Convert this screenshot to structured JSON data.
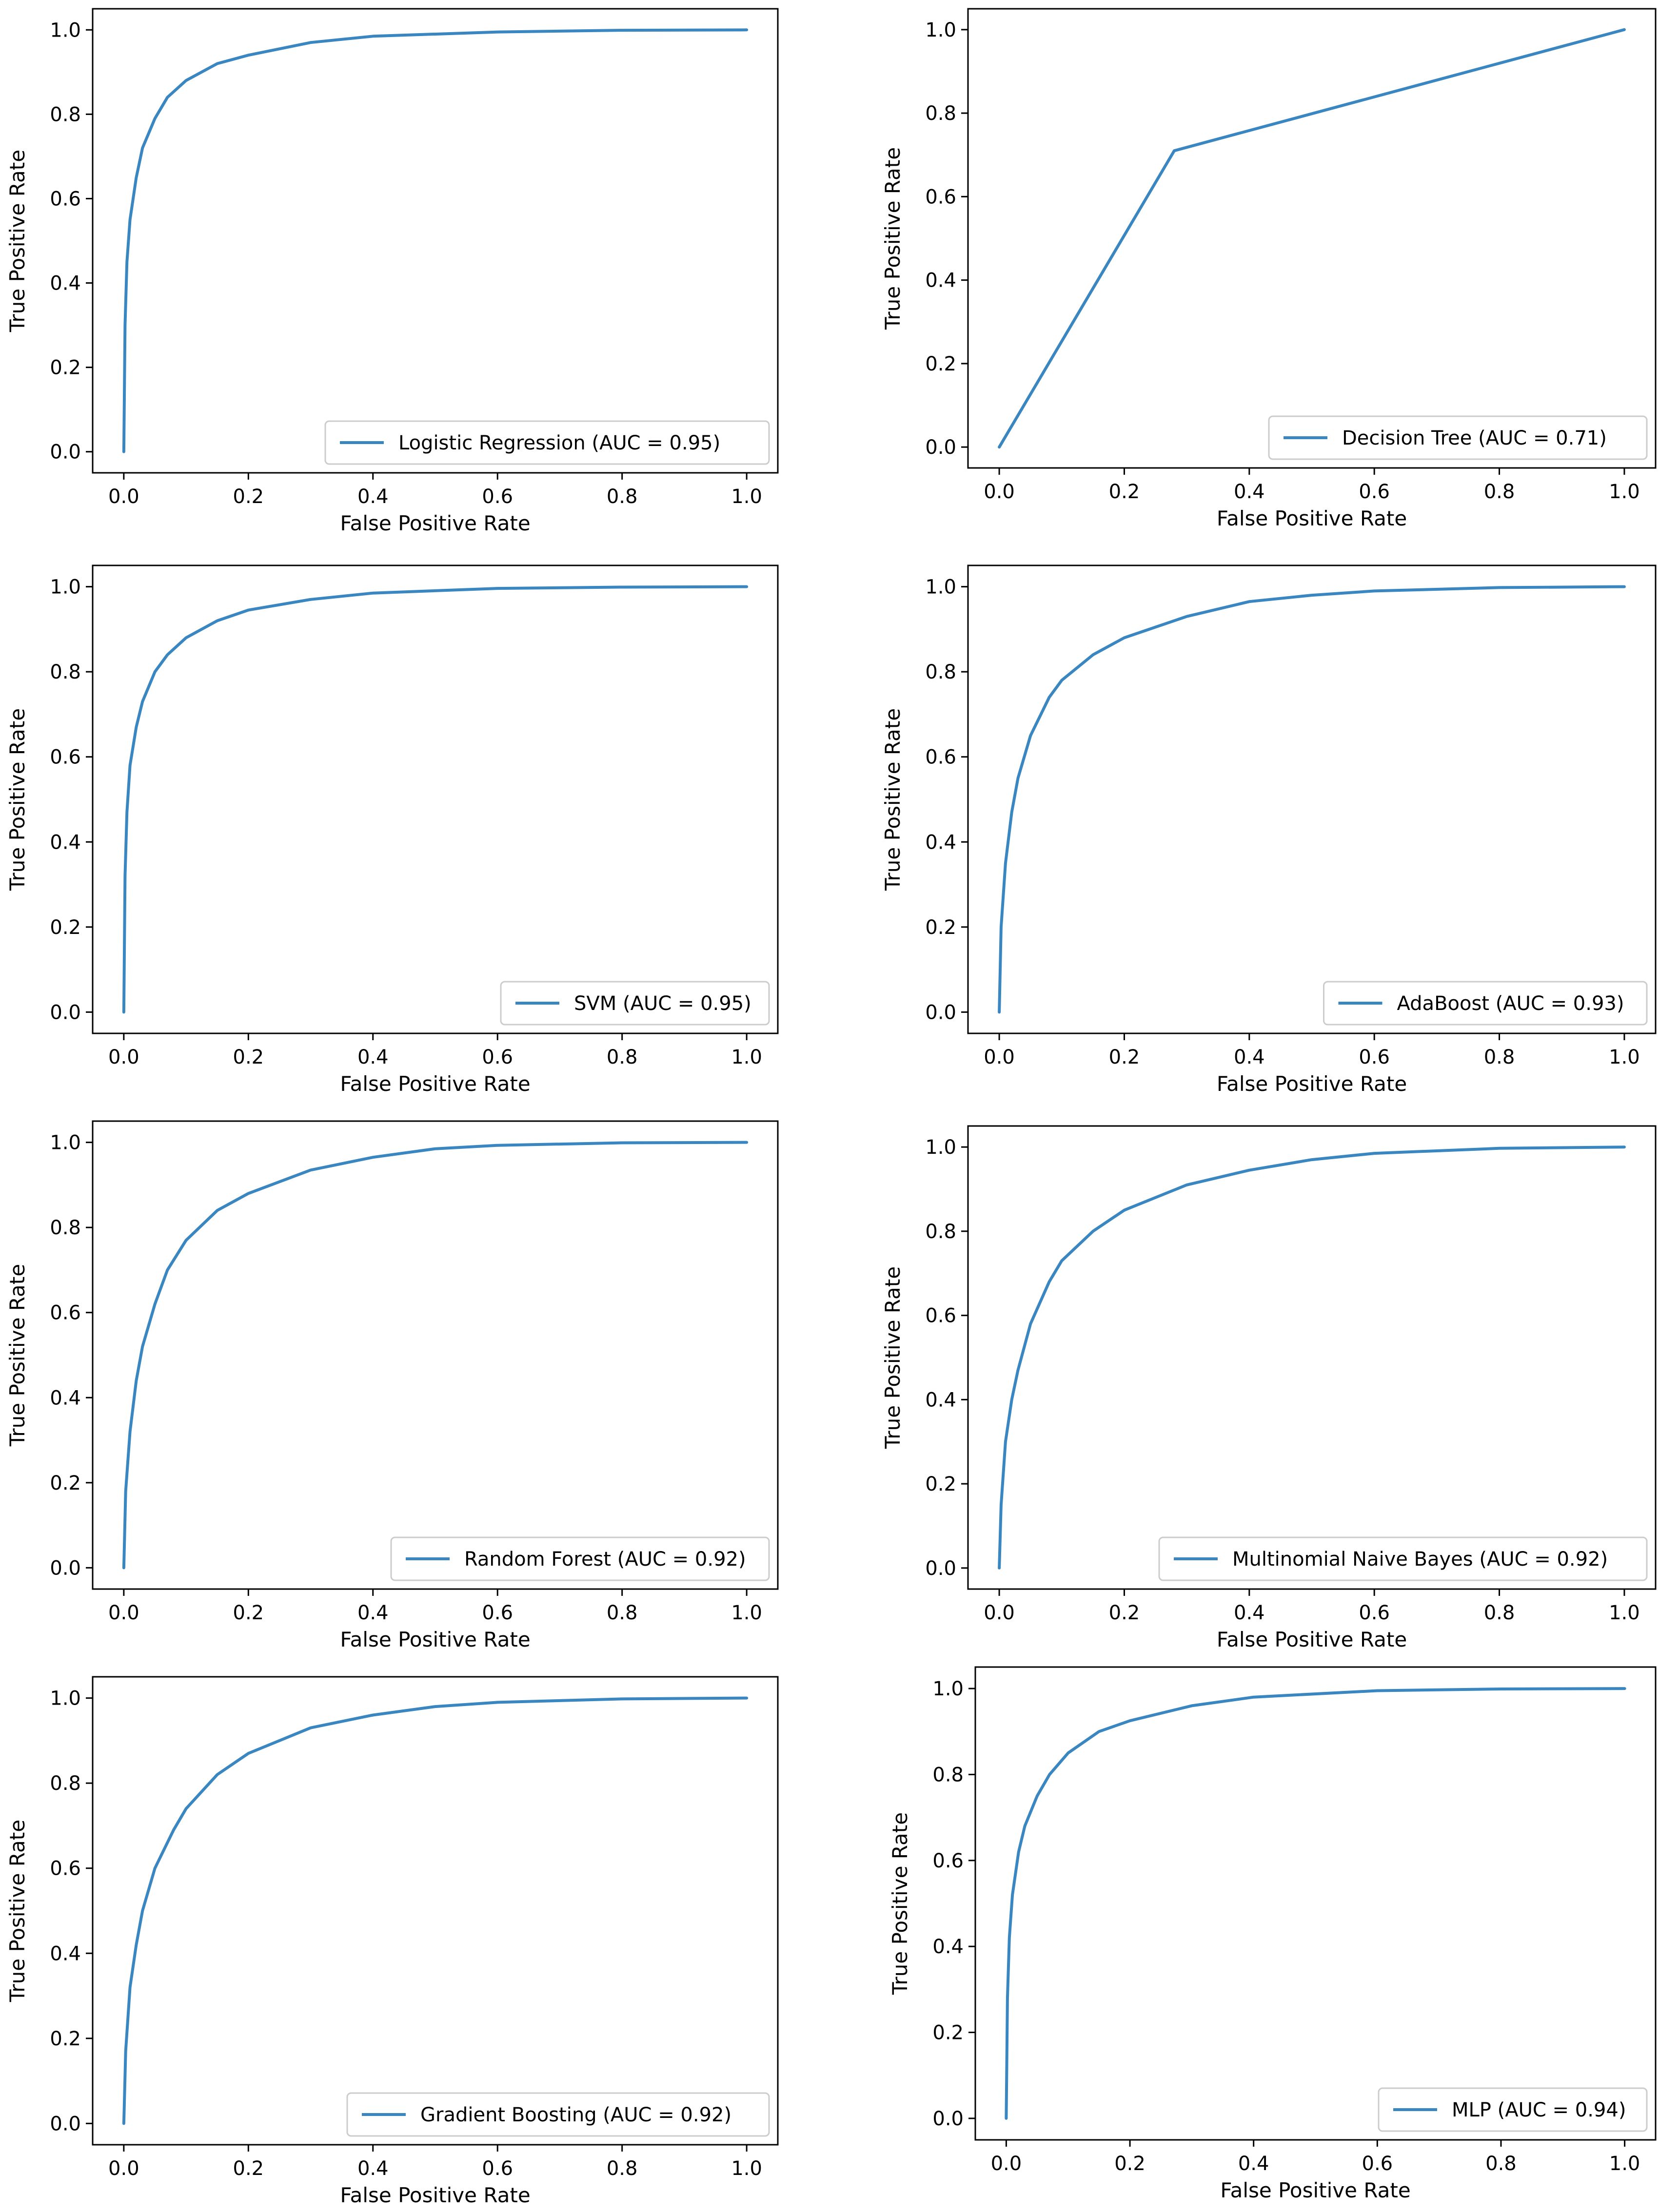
{
  "colors": {
    "line": "#3a86c0",
    "axes": "#000000",
    "legend_border": "#cccccc"
  },
  "chart_data": [
    {
      "type": "line",
      "title": "",
      "legend": "Logistic Regression (AUC = 0.95)",
      "xlabel": "False Positive Rate",
      "ylabel": "True Positive Rate",
      "xlim": [
        -0.05,
        1.05
      ],
      "ylim": [
        -0.05,
        1.05
      ],
      "xticks": [
        "0.0",
        "0.2",
        "0.4",
        "0.6",
        "0.8",
        "1.0"
      ],
      "yticks": [
        "0.0",
        "0.2",
        "0.4",
        "0.6",
        "0.8",
        "1.0"
      ],
      "x": [
        0,
        0.002,
        0.005,
        0.01,
        0.02,
        0.03,
        0.05,
        0.07,
        0.1,
        0.15,
        0.2,
        0.3,
        0.4,
        0.6,
        0.8,
        1.0
      ],
      "y": [
        0,
        0.3,
        0.45,
        0.55,
        0.65,
        0.72,
        0.79,
        0.84,
        0.88,
        0.92,
        0.94,
        0.97,
        0.985,
        0.995,
        0.999,
        1.0
      ]
    },
    {
      "type": "line",
      "title": "",
      "legend": "Decision Tree (AUC = 0.71)",
      "xlabel": "False Positive Rate",
      "ylabel": "True Positive Rate",
      "xlim": [
        -0.05,
        1.05
      ],
      "ylim": [
        -0.05,
        1.05
      ],
      "xticks": [
        "0.0",
        "0.2",
        "0.4",
        "0.6",
        "0.8",
        "1.0"
      ],
      "yticks": [
        "0.0",
        "0.2",
        "0.4",
        "0.6",
        "0.8",
        "1.0"
      ],
      "x": [
        0,
        0.28,
        1.0
      ],
      "y": [
        0,
        0.71,
        1.0
      ]
    },
    {
      "type": "line",
      "title": "",
      "legend": "SVM (AUC = 0.95)",
      "xlabel": "False Positive Rate",
      "ylabel": "True Positive Rate",
      "xlim": [
        -0.05,
        1.05
      ],
      "ylim": [
        -0.05,
        1.05
      ],
      "xticks": [
        "0.0",
        "0.2",
        "0.4",
        "0.6",
        "0.8",
        "1.0"
      ],
      "yticks": [
        "0.0",
        "0.2",
        "0.4",
        "0.6",
        "0.8",
        "1.0"
      ],
      "x": [
        0,
        0.002,
        0.005,
        0.01,
        0.02,
        0.03,
        0.05,
        0.07,
        0.1,
        0.15,
        0.2,
        0.3,
        0.4,
        0.6,
        0.8,
        1.0
      ],
      "y": [
        0,
        0.32,
        0.47,
        0.58,
        0.67,
        0.73,
        0.8,
        0.84,
        0.88,
        0.92,
        0.945,
        0.97,
        0.985,
        0.996,
        0.999,
        1.0
      ]
    },
    {
      "type": "line",
      "title": "",
      "legend": "AdaBoost (AUC = 0.93)",
      "xlabel": "False Positive Rate",
      "ylabel": "True Positive Rate",
      "xlim": [
        -0.05,
        1.05
      ],
      "ylim": [
        -0.05,
        1.05
      ],
      "xticks": [
        "0.0",
        "0.2",
        "0.4",
        "0.6",
        "0.8",
        "1.0"
      ],
      "yticks": [
        "0.0",
        "0.2",
        "0.4",
        "0.6",
        "0.8",
        "1.0"
      ],
      "x": [
        0,
        0.003,
        0.01,
        0.02,
        0.03,
        0.05,
        0.08,
        0.1,
        0.15,
        0.2,
        0.3,
        0.4,
        0.5,
        0.6,
        0.8,
        1.0
      ],
      "y": [
        0,
        0.2,
        0.35,
        0.47,
        0.55,
        0.65,
        0.74,
        0.78,
        0.84,
        0.88,
        0.93,
        0.965,
        0.98,
        0.99,
        0.998,
        1.0
      ]
    },
    {
      "type": "line",
      "title": "",
      "legend": "Random Forest (AUC = 0.92)",
      "xlabel": "False Positive Rate",
      "ylabel": "True Positive Rate",
      "xlim": [
        -0.05,
        1.05
      ],
      "ylim": [
        -0.05,
        1.05
      ],
      "xticks": [
        "0.0",
        "0.2",
        "0.4",
        "0.6",
        "0.8",
        "1.0"
      ],
      "yticks": [
        "0.0",
        "0.2",
        "0.4",
        "0.6",
        "0.8",
        "1.0"
      ],
      "x": [
        0,
        0.003,
        0.01,
        0.02,
        0.03,
        0.05,
        0.07,
        0.1,
        0.15,
        0.2,
        0.3,
        0.4,
        0.5,
        0.6,
        0.8,
        1.0
      ],
      "y": [
        0,
        0.18,
        0.32,
        0.44,
        0.52,
        0.62,
        0.7,
        0.77,
        0.84,
        0.88,
        0.935,
        0.965,
        0.985,
        0.993,
        0.999,
        1.0
      ]
    },
    {
      "type": "line",
      "title": "",
      "legend": "Multinomial Naive Bayes (AUC = 0.92)",
      "xlabel": "False Positive Rate",
      "ylabel": "True Positive Rate",
      "xlim": [
        -0.05,
        1.05
      ],
      "ylim": [
        -0.05,
        1.05
      ],
      "xticks": [
        "0.0",
        "0.2",
        "0.4",
        "0.6",
        "0.8",
        "1.0"
      ],
      "yticks": [
        "0.0",
        "0.2",
        "0.4",
        "0.6",
        "0.8",
        "1.0"
      ],
      "x": [
        0,
        0.003,
        0.01,
        0.02,
        0.03,
        0.05,
        0.08,
        0.1,
        0.15,
        0.2,
        0.3,
        0.4,
        0.5,
        0.6,
        0.8,
        1.0
      ],
      "y": [
        0,
        0.15,
        0.3,
        0.4,
        0.47,
        0.58,
        0.68,
        0.73,
        0.8,
        0.85,
        0.91,
        0.945,
        0.97,
        0.985,
        0.997,
        1.0
      ]
    },
    {
      "type": "line",
      "title": "",
      "legend": "Gradient Boosting (AUC = 0.92)",
      "xlabel": "False Positive Rate",
      "ylabel": "True Positive Rate",
      "xlim": [
        -0.05,
        1.05
      ],
      "ylim": [
        -0.05,
        1.05
      ],
      "xticks": [
        "0.0",
        "0.2",
        "0.4",
        "0.6",
        "0.8",
        "1.0"
      ],
      "yticks": [
        "0.0",
        "0.2",
        "0.4",
        "0.6",
        "0.8",
        "1.0"
      ],
      "x": [
        0,
        0.003,
        0.01,
        0.02,
        0.03,
        0.05,
        0.08,
        0.1,
        0.15,
        0.2,
        0.3,
        0.4,
        0.5,
        0.6,
        0.8,
        1.0
      ],
      "y": [
        0,
        0.17,
        0.32,
        0.42,
        0.5,
        0.6,
        0.69,
        0.74,
        0.82,
        0.87,
        0.93,
        0.96,
        0.98,
        0.99,
        0.998,
        1.0
      ]
    },
    {
      "type": "line",
      "title": "",
      "legend": "MLP (AUC = 0.94)",
      "xlabel": "False Positive Rate",
      "ylabel": "True Positive Rate",
      "xlim": [
        -0.05,
        1.05
      ],
      "ylim": [
        -0.05,
        1.05
      ],
      "xticks": [
        "0.0",
        "0.2",
        "0.4",
        "0.6",
        "0.8",
        "1.0"
      ],
      "yticks": [
        "0.0",
        "0.2",
        "0.4",
        "0.6",
        "0.8",
        "1.0"
      ],
      "x": [
        0,
        0.002,
        0.005,
        0.01,
        0.02,
        0.03,
        0.05,
        0.07,
        0.1,
        0.15,
        0.2,
        0.3,
        0.4,
        0.6,
        0.8,
        1.0
      ],
      "y": [
        0,
        0.28,
        0.42,
        0.52,
        0.62,
        0.68,
        0.75,
        0.8,
        0.85,
        0.9,
        0.925,
        0.96,
        0.98,
        0.995,
        0.999,
        1.0
      ]
    }
  ]
}
